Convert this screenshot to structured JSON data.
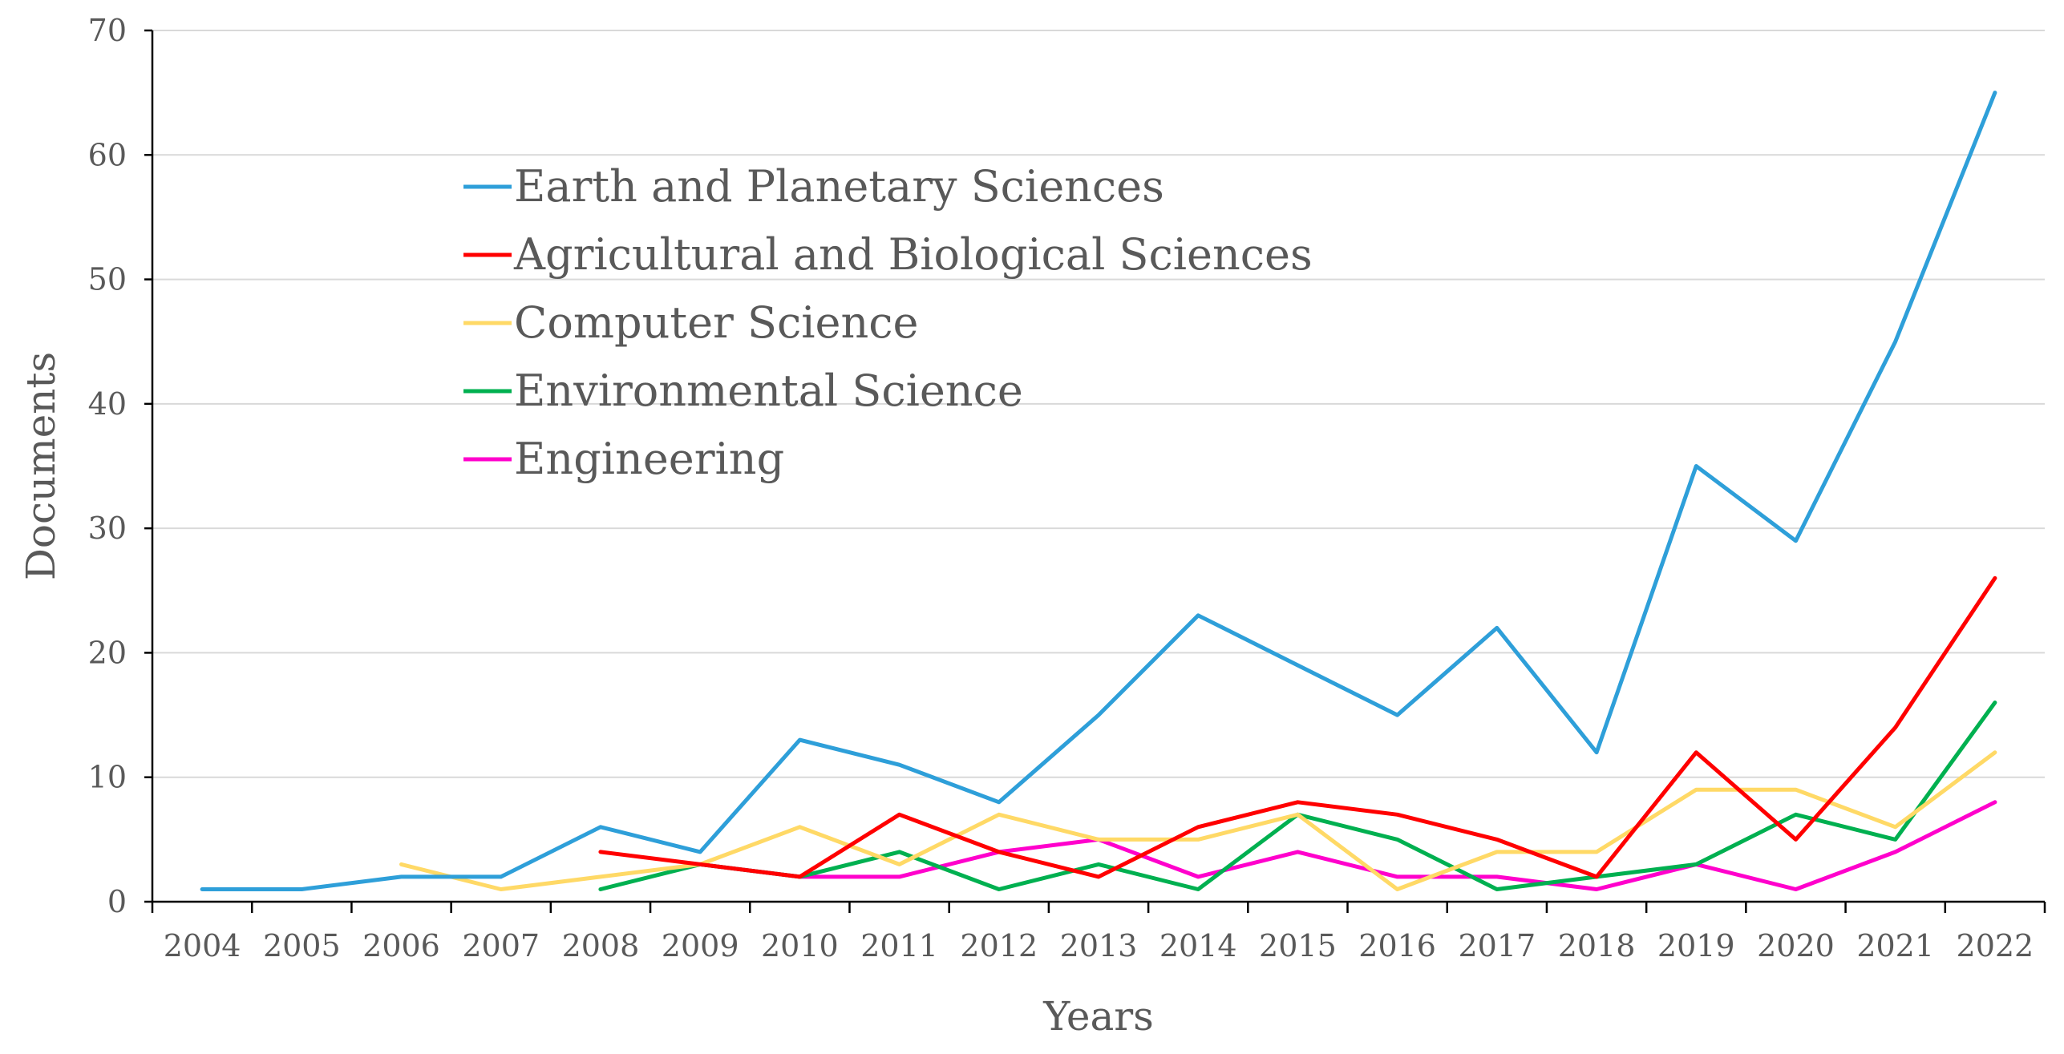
{
  "chart_data": {
    "type": "line",
    "title": "",
    "xlabel": "Years",
    "ylabel": "Documents",
    "ylim": [
      0,
      70
    ],
    "yticks": [
      0,
      10,
      20,
      30,
      40,
      50,
      60,
      70
    ],
    "grid": "horizontal",
    "legend_position": "top-left inside plot",
    "categories": [
      "2004",
      "2005",
      "2006",
      "2007",
      "2008",
      "2009",
      "2010",
      "2011",
      "2012",
      "2013",
      "2014",
      "2015",
      "2016",
      "2017",
      "2018",
      "2019",
      "2020",
      "2021",
      "2022"
    ],
    "series": [
      {
        "name": "Earth and Planetary Sciences",
        "color": "#2E9FD9",
        "values": [
          1,
          1,
          2,
          2,
          6,
          4,
          13,
          11,
          8,
          15,
          23,
          19,
          15,
          22,
          12,
          35,
          29,
          45,
          65
        ]
      },
      {
        "name": "Agricultural and Biological Sciences",
        "color": "#FF0000",
        "values": [
          null,
          null,
          null,
          null,
          4,
          3,
          2,
          7,
          4,
          2,
          6,
          8,
          7,
          5,
          2,
          12,
          5,
          14,
          26
        ]
      },
      {
        "name": "Computer Science",
        "color": "#FFD966",
        "values": [
          null,
          null,
          3,
          1,
          2,
          3,
          6,
          3,
          7,
          5,
          5,
          7,
          1,
          4,
          4,
          9,
          9,
          6,
          12
        ]
      },
      {
        "name": "Environmental Science",
        "color": "#00B050",
        "values": [
          null,
          null,
          null,
          null,
          1,
          3,
          2,
          4,
          1,
          3,
          1,
          7,
          5,
          1,
          2,
          3,
          7,
          5,
          16
        ]
      },
      {
        "name": "Engineering",
        "color": "#FF00CC",
        "values": [
          null,
          null,
          null,
          null,
          null,
          3,
          2,
          2,
          4,
          5,
          2,
          4,
          2,
          2,
          1,
          3,
          1,
          4,
          8
        ]
      }
    ]
  }
}
